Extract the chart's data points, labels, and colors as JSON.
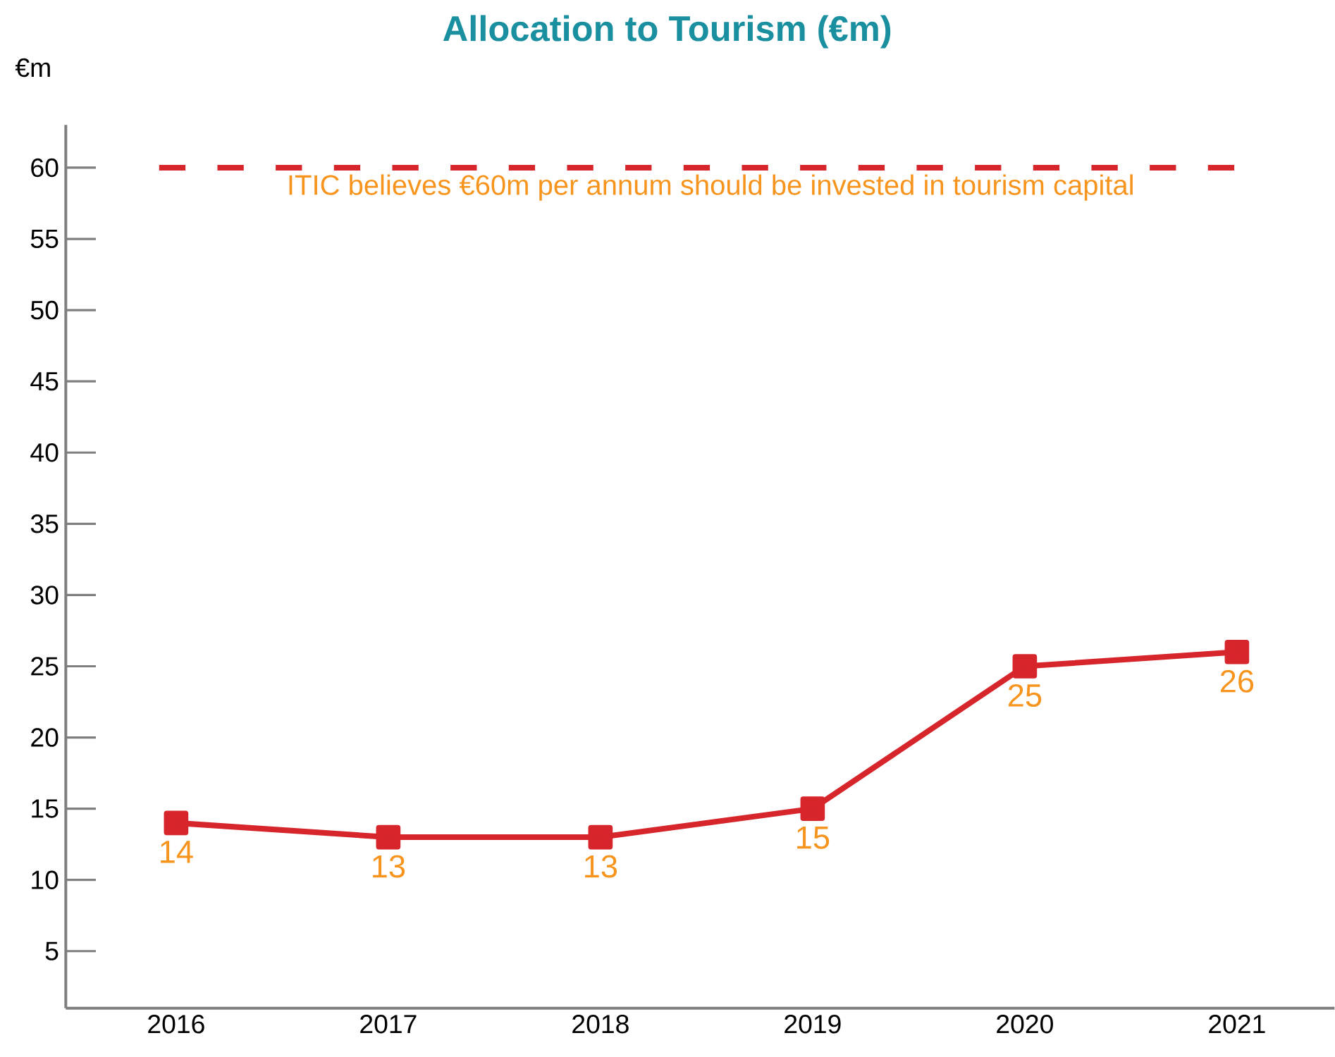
{
  "chart_data": {
    "type": "line",
    "title": "Allocation to Tourism (€m)",
    "ylabel": "€m",
    "categories": [
      "2016",
      "2017",
      "2018",
      "2019",
      "2020",
      "2021"
    ],
    "series": [
      {
        "color": "#d7252c",
        "values": [
          14,
          13,
          13,
          15,
          25,
          26
        ]
      }
    ],
    "ylim": [
      1,
      63
    ],
    "yticks": [
      5,
      10,
      15,
      20,
      25,
      30,
      35,
      40,
      45,
      50,
      55,
      60
    ],
    "ref_lines": [
      {
        "axis": "y",
        "value": 60,
        "label": "ITIC believes €60m per annum should be invested in tourism capital",
        "color": "#d7252c",
        "line_style": "dashed"
      }
    ],
    "data_labels": true,
    "marker": "square",
    "line_style": "solid",
    "grid": false
  }
}
